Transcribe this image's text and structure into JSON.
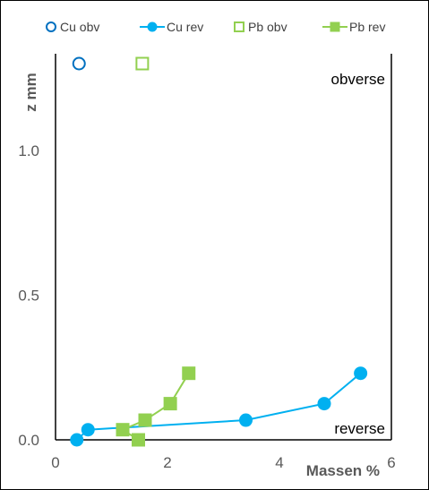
{
  "chart_data": {
    "type": "scatter",
    "xlabel": "Massen %",
    "ylabel": "z  mm",
    "xlim": [
      0,
      6
    ],
    "ylim": [
      0,
      1.3
    ],
    "xticks": [
      "0",
      "2",
      "4",
      "6"
    ],
    "yticks": [
      "0.0",
      "0.5",
      "1.0"
    ],
    "xtick_values": [
      0,
      2,
      4,
      6
    ],
    "ytick_values": [
      0,
      0.5,
      1.0
    ],
    "grid": false,
    "legend_position": "top",
    "annotations": [
      "obverse",
      "reverse"
    ],
    "series": [
      {
        "name": "Cu obv",
        "marker": "circle-open",
        "line": false,
        "color": "#0070C0",
        "points": [
          {
            "x": 0.42,
            "y": 1.3
          }
        ]
      },
      {
        "name": "Cu rev",
        "marker": "circle",
        "line": true,
        "color": "#00B0F0",
        "points": [
          {
            "x": 0.38,
            "y": 0.0
          },
          {
            "x": 0.58,
            "y": 0.035
          },
          {
            "x": 3.4,
            "y": 0.068
          },
          {
            "x": 4.8,
            "y": 0.125
          },
          {
            "x": 5.45,
            "y": 0.23
          }
        ]
      },
      {
        "name": "Pb obv",
        "marker": "square-open",
        "line": false,
        "color": "#92D050",
        "points": [
          {
            "x": 1.55,
            "y": 1.3
          }
        ]
      },
      {
        "name": "Pb rev",
        "marker": "square",
        "line": true,
        "color": "#92D050",
        "points": [
          {
            "x": 1.48,
            "y": 0.0
          },
          {
            "x": 1.2,
            "y": 0.035
          },
          {
            "x": 1.6,
            "y": 0.068
          },
          {
            "x": 2.05,
            "y": 0.125
          },
          {
            "x": 2.38,
            "y": 0.23
          }
        ]
      }
    ]
  }
}
